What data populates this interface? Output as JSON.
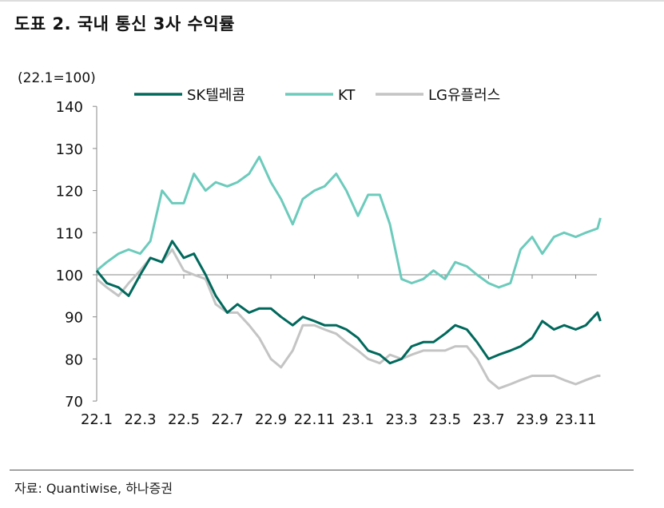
{
  "title": "도표 2. 국내 통신 3사 수익률",
  "source": "자료: Quantiwise, 하나증권",
  "chart_data": {
    "type": "line",
    "ylabel": "(22.1=100)",
    "ylim": [
      70,
      140
    ],
    "yticks": [
      70,
      80,
      90,
      100,
      110,
      120,
      130,
      140
    ],
    "xticks": [
      "22.1",
      "22.3",
      "22.5",
      "22.7",
      "22.9",
      "22.11",
      "23.1",
      "23.3",
      "23.5",
      "23.7",
      "23.9",
      "23.11"
    ],
    "xtick_months": [
      0,
      2,
      4,
      6,
      8,
      10,
      12,
      14,
      16,
      18,
      20,
      22
    ],
    "grid": false,
    "reference_line": 100,
    "legend": "top",
    "x": [
      "2022-01-01",
      "2022-01-15",
      "2022-02-01",
      "2022-02-15",
      "2022-03-01",
      "2022-03-15",
      "2022-04-01",
      "2022-04-15",
      "2022-05-01",
      "2022-05-15",
      "2022-06-01",
      "2022-06-15",
      "2022-07-01",
      "2022-07-15",
      "2022-08-01",
      "2022-08-15",
      "2022-09-01",
      "2022-09-15",
      "2022-10-01",
      "2022-10-15",
      "2022-11-01",
      "2022-11-15",
      "2022-12-01",
      "2022-12-15",
      "2023-01-01",
      "2023-01-15",
      "2023-02-01",
      "2023-02-15",
      "2023-03-01",
      "2023-03-15",
      "2023-04-01",
      "2023-04-15",
      "2023-05-01",
      "2023-05-15",
      "2023-06-01",
      "2023-06-15",
      "2023-07-01",
      "2023-07-15",
      "2023-08-01",
      "2023-08-15",
      "2023-09-01",
      "2023-09-15",
      "2023-10-01",
      "2023-10-15",
      "2023-11-01",
      "2023-11-15",
      "2023-12-01",
      "2023-12-05"
    ],
    "series": [
      {
        "name": "SK텔레콤",
        "color": "#00695c",
        "values": [
          101,
          98,
          97,
          95,
          100,
          104,
          103,
          108,
          104,
          105,
          100,
          95,
          91,
          93,
          91,
          92,
          92,
          90,
          88,
          90,
          89,
          88,
          88,
          87,
          85,
          82,
          81,
          79,
          80,
          83,
          84,
          84,
          86,
          88,
          87,
          84,
          80,
          81,
          82,
          83,
          85,
          89,
          87,
          88,
          87,
          88,
          91,
          89
        ]
      },
      {
        "name": "KT",
        "color": "#6ccbbc",
        "values": [
          101,
          103,
          105,
          106,
          105,
          108,
          120,
          117,
          117,
          124,
          120,
          122,
          121,
          122,
          124,
          128,
          122,
          118,
          112,
          118,
          120,
          121,
          124,
          120,
          114,
          119,
          119,
          112,
          99,
          98,
          99,
          101,
          99,
          103,
          102,
          100,
          98,
          97,
          98,
          106,
          109,
          105,
          109,
          110,
          109,
          110,
          111,
          113.5
        ]
      },
      {
        "name": "LG유플러스",
        "color": "#c4c4c4",
        "values": [
          99,
          97,
          95,
          98,
          101,
          104,
          103,
          106,
          101,
          100,
          99,
          93,
          91,
          91,
          88,
          85,
          80,
          78,
          82,
          88,
          88,
          87,
          86,
          84,
          82,
          80,
          79,
          81,
          80,
          81,
          82,
          82,
          82,
          83,
          83,
          80,
          75,
          73,
          74,
          75,
          76,
          76,
          76,
          75,
          74,
          75,
          76,
          76
        ]
      }
    ]
  }
}
